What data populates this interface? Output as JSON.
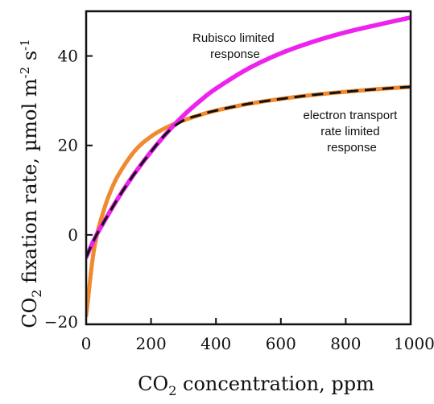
{
  "chart_data": {
    "type": "line",
    "xlabel_parts": [
      "CO",
      "2",
      " concentration, ppm"
    ],
    "ylabel_parts": [
      "CO",
      "2",
      " fixation rate, µmol m",
      "-2",
      " s",
      "-1"
    ],
    "xlim": [
      0,
      1000
    ],
    "ylim": [
      -20,
      50
    ],
    "xticks": [
      0,
      200,
      400,
      600,
      800,
      1000
    ],
    "yticks": [
      -20,
      0,
      20,
      40
    ],
    "xtick_labels": [
      "0",
      "200",
      "400",
      "600",
      "800",
      "1000"
    ],
    "ytick_labels": [
      "−20",
      "0",
      "20",
      "40"
    ],
    "grid": false,
    "annotations": [
      {
        "lines": [
          "Rubisco limited",
          "response"
        ],
        "series": "rubisco"
      },
      {
        "lines": [
          "electron transport",
          "rate limited",
          "response"
        ],
        "series": "electron"
      }
    ],
    "series": [
      {
        "key": "rubisco",
        "color": "#ee22ee",
        "style": "solid",
        "x": [
          0,
          25,
          50,
          100,
          150,
          200,
          250,
          300,
          350,
          400,
          500,
          600,
          700,
          800,
          900,
          1000
        ],
        "y": [
          -5.0,
          -1.0,
          2.3,
          8.4,
          13.8,
          18.6,
          22.9,
          26.7,
          29.9,
          32.7,
          37.2,
          40.6,
          43.2,
          45.3,
          47.0,
          48.6
        ]
      },
      {
        "key": "electron",
        "color": "#f08a30",
        "style": "dotted-markers",
        "x": [
          0,
          5,
          10,
          20,
          30,
          40,
          50,
          70,
          100,
          150,
          200,
          250,
          300,
          350,
          400,
          500,
          600,
          700,
          800,
          900,
          1000
        ],
        "y": [
          -18.0,
          -15.0,
          -11.5,
          -5.3,
          -1.0,
          2.0,
          4.5,
          8.8,
          13.5,
          18.8,
          22.0,
          24.1,
          25.6,
          26.8,
          27.8,
          29.3,
          30.4,
          31.3,
          32.0,
          32.6,
          33.1
        ]
      },
      {
        "key": "minimum",
        "color": "#111111",
        "style": "dashed",
        "x": [
          0,
          25,
          50,
          100,
          150,
          200,
          250,
          300,
          350,
          400,
          500,
          600,
          700,
          800,
          900,
          1000
        ],
        "y": [
          -5.0,
          -1.0,
          2.3,
          8.4,
          13.8,
          18.6,
          22.9,
          25.6,
          26.8,
          27.8,
          29.3,
          30.4,
          31.3,
          32.0,
          32.6,
          33.1
        ]
      }
    ]
  }
}
